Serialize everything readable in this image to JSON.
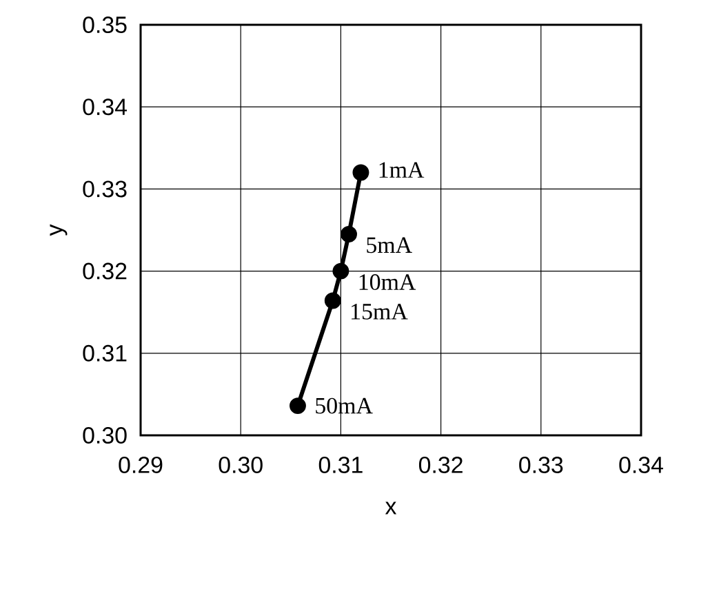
{
  "chart_data": {
    "type": "line",
    "xlabel": "x",
    "ylabel": "y",
    "series": [
      {
        "color": "#000000",
        "x": [
          0.312,
          0.3108,
          0.31,
          0.3092,
          0.3057
        ],
        "values": [
          0.332,
          0.3245,
          0.32,
          0.3164,
          0.3036
        ]
      }
    ],
    "xlim": [
      0.29,
      0.34
    ],
    "ylim": [
      0.3,
      0.35
    ],
    "xticks": [
      {
        "value": 0.29,
        "label": "0.29"
      },
      {
        "value": 0.3,
        "label": "0.30"
      },
      {
        "value": 0.31,
        "label": "0.31"
      },
      {
        "value": 0.32,
        "label": "0.32"
      },
      {
        "value": 0.33,
        "label": "0.33"
      },
      {
        "value": 0.34,
        "label": "0.34"
      }
    ],
    "yticks": [
      {
        "value": 0.3,
        "label": "0.30"
      },
      {
        "value": 0.31,
        "label": "0.31"
      },
      {
        "value": 0.32,
        "label": "0.32"
      },
      {
        "value": 0.33,
        "label": "0.33"
      },
      {
        "value": 0.34,
        "label": "0.34"
      },
      {
        "value": 0.35,
        "label": "0.35"
      }
    ],
    "grid": true,
    "marker": "circle",
    "line_style": "solid",
    "annotations": [
      {
        "text": "1mA",
        "x": 0.312,
        "y": 0.332
      },
      {
        "text": "5mA",
        "x": 0.3108,
        "y": 0.3245
      },
      {
        "text": "10mA",
        "x": 0.31,
        "y": 0.32
      },
      {
        "text": "15mA",
        "x": 0.3092,
        "y": 0.3164
      },
      {
        "text": "50mA",
        "x": 0.3057,
        "y": 0.3036
      }
    ]
  }
}
